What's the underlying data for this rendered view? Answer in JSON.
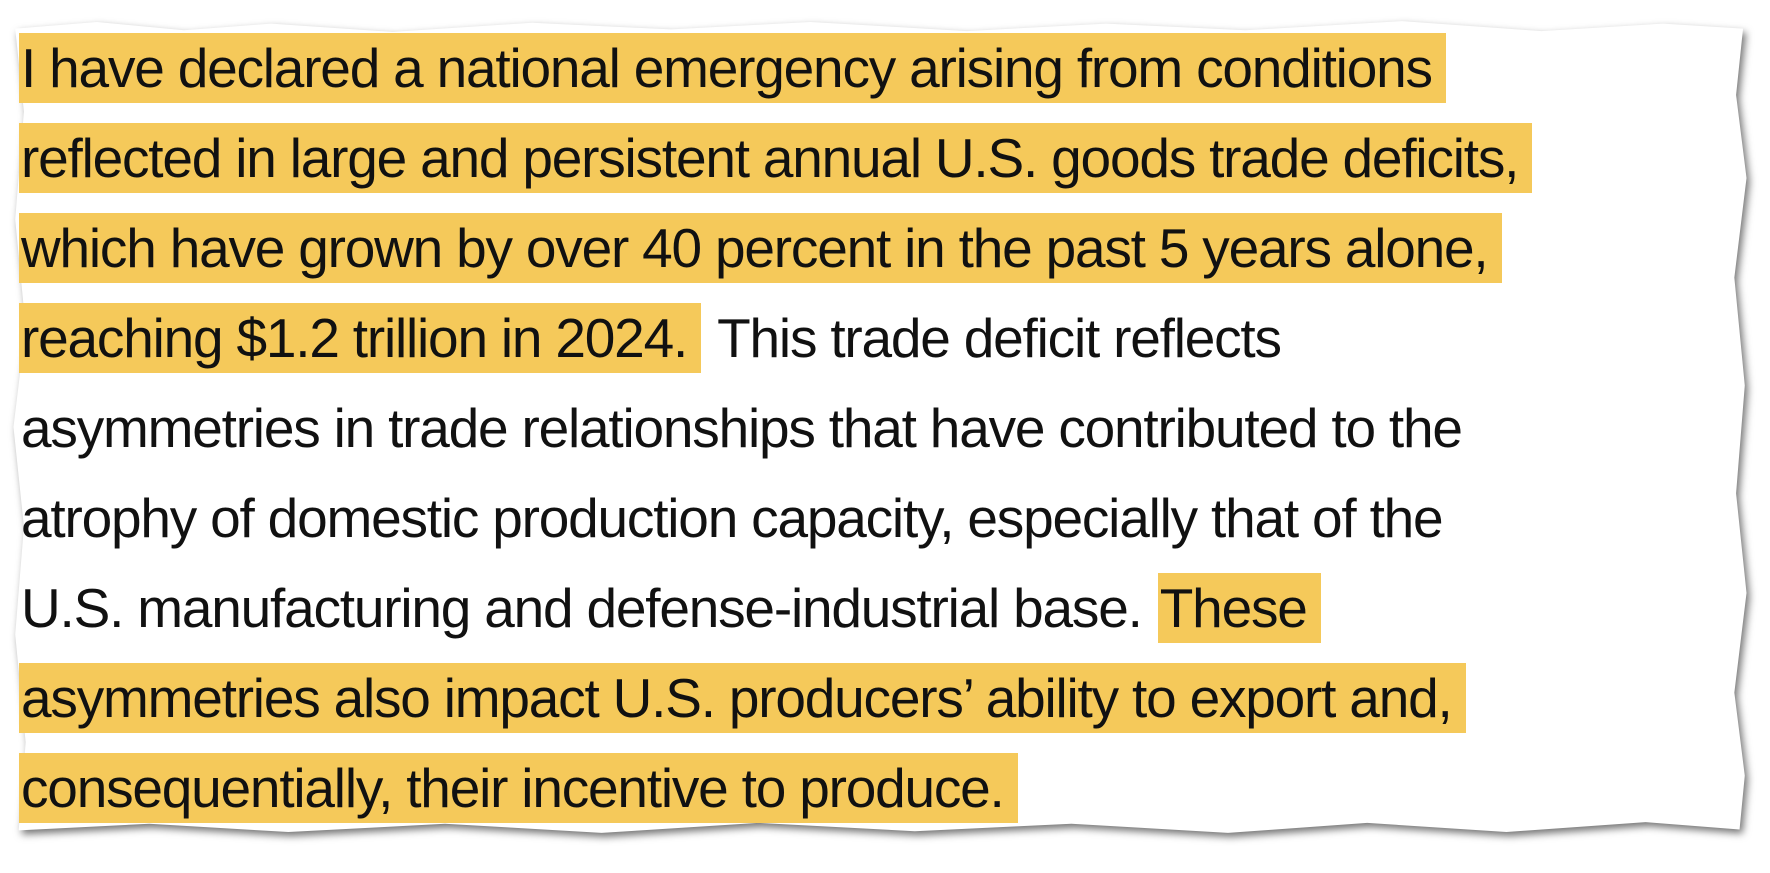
{
  "colors": {
    "highlight": "#F5C95A",
    "text": "#111111",
    "paper": "#FFFFFF"
  },
  "lines": [
    {
      "highlight": "I have declared a national emergency arising from conditions",
      "plain": ""
    },
    {
      "highlight": "reflected in large and persistent annual U.S. goods trade deficits,",
      "plain": ""
    },
    {
      "highlight": "which have grown by over 40 percent in the past 5 years alone,",
      "plain": ""
    },
    {
      "highlight": "reaching $1.2 trillion in 2024.",
      "plain": "This trade deficit reflects"
    },
    {
      "plain": "asymmetries in trade relationships that have contributed to the"
    },
    {
      "plain": "atrophy of domestic production capacity, especially that of the"
    },
    {
      "plain": "U.S. manufacturing and defense-industrial base.",
      "highlight": "These"
    },
    {
      "highlight": "asymmetries also impact U.S. producers’ ability to export and,"
    },
    {
      "highlight": "consequentially, their incentive to produce."
    }
  ]
}
